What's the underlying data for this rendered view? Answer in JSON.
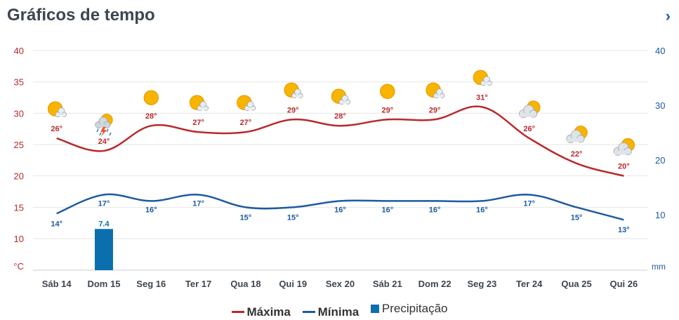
{
  "header": {
    "title": "Gráficos de tempo",
    "next_icon": "chevron-right-icon"
  },
  "chart_data": {
    "type": "line",
    "categories": [
      "Sáb 14",
      "Dom 15",
      "Seg 16",
      "Ter 17",
      "Qua 18",
      "Qui 19",
      "Sex 20",
      "Sáb 21",
      "Dom 22",
      "Seg 23",
      "Ter 24",
      "Qua 25",
      "Qui 26"
    ],
    "series": [
      {
        "name": "Máxima",
        "color": "#b82a2d",
        "values": [
          26,
          24,
          28,
          27,
          27,
          29,
          28,
          29,
          29,
          31,
          26,
          22,
          20
        ],
        "labels": [
          "26°",
          "24°",
          "28°",
          "27°",
          "27°",
          "29°",
          "28°",
          "29°",
          "29°",
          "31°",
          "26°",
          "22°",
          "20°"
        ]
      },
      {
        "name": "Mínima",
        "color": "#1e5aa0",
        "values": [
          14,
          17,
          16,
          17,
          15,
          15,
          16,
          16,
          16,
          16,
          17,
          15,
          13
        ],
        "labels": [
          "14°",
          "17°",
          "16°",
          "17°",
          "15°",
          "15°",
          "16°",
          "16°",
          "16°",
          "16°",
          "17°",
          "15°",
          "13°"
        ]
      },
      {
        "name": "Precipitação",
        "color": "#0b6fae",
        "type": "bar",
        "values": [
          null,
          7.4,
          null,
          null,
          null,
          null,
          null,
          null,
          null,
          null,
          null,
          null,
          null
        ],
        "labels": [
          "",
          "7.4",
          "",
          "",
          "",
          "",
          "",
          "",
          "",
          "",
          "",
          "",
          ""
        ]
      }
    ],
    "icons": [
      "sun-cloud-icon",
      "thunderstorm-icon",
      "sun-icon",
      "sun-cloud-icon",
      "sun-cloud-icon",
      "sun-cloud-icon",
      "sun-cloud-icon",
      "sun-icon",
      "sun-cloud-icon",
      "sun-cloud-icon",
      "cloud-sun-icon",
      "cloud-sun-icon",
      "cloud-sun-icon"
    ],
    "y_left": {
      "ticks": [
        "40",
        "35",
        "30",
        "25",
        "20",
        "15",
        "10"
      ],
      "unit": "°C",
      "ylim": [
        5,
        40
      ]
    },
    "y_right": {
      "ticks": [
        "40",
        "30",
        "20",
        "10"
      ],
      "unit": "mm"
    },
    "grid": true,
    "legend_position": "bottom-center"
  }
}
